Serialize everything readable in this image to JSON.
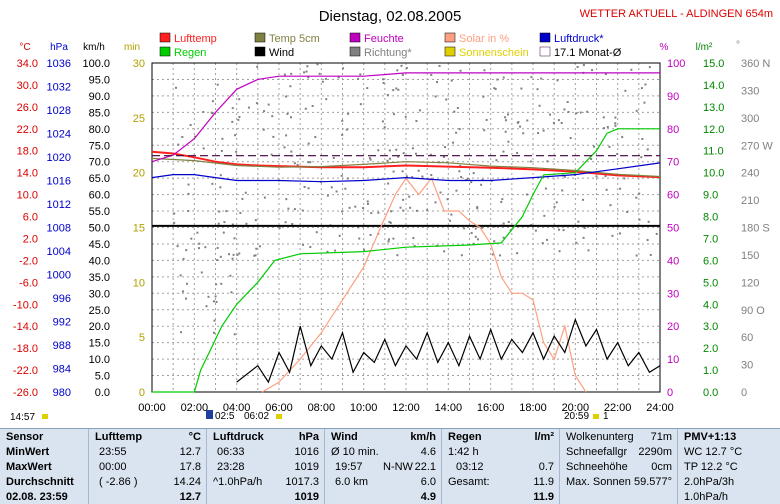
{
  "header": {
    "date_title": "Dienstag, 02.08.2005",
    "station": "WETTER AKTUELL - ALDINGEN 654m"
  },
  "axis_units": {
    "temp": "°C",
    "pressure": "hPa",
    "wind": "km/h",
    "sun_min": "min",
    "percent": "%",
    "rain": "l/m²",
    "direction": "°"
  },
  "legend": [
    {
      "name": "Lufttemp",
      "color": "#ff2020"
    },
    {
      "name": "Temp 5cm",
      "color": "#808040"
    },
    {
      "name": "Feuchte",
      "color": "#c000c0"
    },
    {
      "name": "Solar in %",
      "color": "#ffa080"
    },
    {
      "name": "Luftdruck*",
      "color": "#0000cc"
    },
    {
      "name": "Regen",
      "color": "#00cc00"
    },
    {
      "name": "Wind",
      "color": "#000000"
    },
    {
      "name": "Richtung*",
      "color": "#808080"
    },
    {
      "name": "Sonnenschein",
      "color": "#e0d000"
    },
    {
      "name": "17.1 Monat-Ø",
      "color": "#400040"
    }
  ],
  "chart_data": {
    "type": "line",
    "x_ticks": [
      "00:00",
      "02:00",
      "04:00",
      "06:00",
      "08:00",
      "10:00",
      "12:00",
      "14:00",
      "16:00",
      "18:00",
      "20:00",
      "22:00",
      "24:00"
    ],
    "xlim_hours": [
      0,
      24
    ],
    "axes": {
      "temp_c": {
        "ticks": [
          "34.0",
          "30.0",
          "26.0",
          "22.0",
          "18.0",
          "14.0",
          "10.0",
          "6.0",
          "2.0",
          "-2.0",
          "-6.0",
          "-10.0",
          "-14.0",
          "-18.0",
          "-22.0",
          "-26.0"
        ],
        "ylim": [
          -26,
          34
        ],
        "color": "#dd0000"
      },
      "pressure_hpa": {
        "ticks": [
          "1036",
          "1032",
          "1028",
          "1024",
          "1020",
          "1016",
          "1012",
          "1008",
          "1004",
          "1000",
          "996",
          "992",
          "988",
          "984",
          "980"
        ],
        "ylim": [
          980,
          1036
        ],
        "color": "#0000cc"
      },
      "wind_kmh": {
        "ticks": [
          "100.0",
          "95.0",
          "90.0",
          "85.0",
          "80.0",
          "75.0",
          "70.0",
          "65.0",
          "60.0",
          "55.0",
          "50.0",
          "45.0",
          "40.0",
          "35.0",
          "30.0",
          "25.0",
          "20.0",
          "15.0",
          "10.0",
          "5.0",
          "0.0"
        ],
        "ylim": [
          0,
          100
        ],
        "color": "#000000"
      },
      "sun_min": {
        "ticks": [
          "30",
          "25",
          "20",
          "15",
          "10",
          "5",
          "0"
        ],
        "ylim": [
          0,
          30
        ],
        "color": "#b0a000"
      },
      "percent": {
        "ticks": [
          "100",
          "90",
          "80",
          "70",
          "60",
          "50",
          "40",
          "30",
          "20",
          "10",
          "0"
        ],
        "ylim": [
          0,
          100
        ],
        "color": "#c000c0"
      },
      "rain_lm2": {
        "ticks": [
          "15.0",
          "14.0",
          "13.0",
          "12.0",
          "11.0",
          "10.0",
          "9.0",
          "8.0",
          "7.0",
          "6.0",
          "5.0",
          "4.0",
          "3.0",
          "2.0",
          "1.0",
          "0.0"
        ],
        "ylim": [
          0,
          15
        ],
        "color": "#008800"
      },
      "direction_deg": {
        "ticks": [
          "360 N",
          "330",
          "300",
          "270 W",
          "240",
          "210",
          "180 S",
          "150",
          "120",
          "90 O",
          "60",
          "30",
          "0"
        ],
        "ylim": [
          0,
          360
        ],
        "color": "#808080"
      }
    },
    "series": [
      {
        "name": "Lufttemp",
        "axis": "temp_c",
        "color": "#ff2020",
        "points": [
          [
            0,
            17.8
          ],
          [
            1,
            17.5
          ],
          [
            2,
            16.8
          ],
          [
            3,
            16.0
          ],
          [
            4,
            15.5
          ],
          [
            5,
            15.3
          ],
          [
            6,
            15.2
          ],
          [
            8,
            15.0
          ],
          [
            10,
            15.0
          ],
          [
            12,
            15.3
          ],
          [
            14,
            15.1
          ],
          [
            16,
            14.9
          ],
          [
            18,
            14.6
          ],
          [
            20,
            14.2
          ],
          [
            22,
            13.5
          ],
          [
            24,
            13.2
          ]
        ]
      },
      {
        "name": "Temp 5cm",
        "axis": "temp_c",
        "color": "#808040",
        "points": [
          [
            0,
            16.6
          ],
          [
            2,
            16.2
          ],
          [
            4,
            15.3
          ],
          [
            6,
            15.0
          ],
          [
            8,
            15.1
          ],
          [
            10,
            15.5
          ],
          [
            12,
            16.0
          ],
          [
            14,
            15.8
          ],
          [
            16,
            15.2
          ],
          [
            18,
            14.9
          ],
          [
            20,
            14.4
          ],
          [
            22,
            13.7
          ],
          [
            24,
            13.3
          ]
        ]
      },
      {
        "name": "Feuchte",
        "axis": "percent",
        "color": "#c000c0",
        "points": [
          [
            0,
            70
          ],
          [
            1,
            72
          ],
          [
            2,
            77
          ],
          [
            3,
            85
          ],
          [
            4,
            92
          ],
          [
            5,
            95
          ],
          [
            6,
            96
          ],
          [
            10,
            96
          ],
          [
            12,
            97
          ],
          [
            24,
            97
          ]
        ]
      },
      {
        "name": "Solar in %",
        "axis": "percent",
        "color": "#ffa080",
        "points": [
          [
            5.2,
            0
          ],
          [
            6,
            3
          ],
          [
            7,
            10
          ],
          [
            8,
            18
          ],
          [
            9,
            28
          ],
          [
            10,
            38
          ],
          [
            10.8,
            50
          ],
          [
            11.5,
            60
          ],
          [
            12,
            65
          ],
          [
            12.6,
            60
          ],
          [
            13.2,
            65
          ],
          [
            13.8,
            55
          ],
          [
            14.5,
            55
          ],
          [
            15,
            52
          ],
          [
            15.5,
            50
          ],
          [
            16,
            45
          ],
          [
            16.5,
            35
          ],
          [
            17,
            30
          ],
          [
            17.5,
            30
          ],
          [
            18,
            28
          ],
          [
            18.5,
            15
          ],
          [
            19,
            10
          ],
          [
            19.5,
            20
          ],
          [
            20,
            5
          ],
          [
            20.5,
            0
          ]
        ]
      },
      {
        "name": "Luftdruck*",
        "axis": "pressure_hpa",
        "color": "#0000cc",
        "points": [
          [
            0,
            1016.5
          ],
          [
            1,
            1017
          ],
          [
            2,
            1017
          ],
          [
            3,
            1016.5
          ],
          [
            4,
            1016
          ],
          [
            6,
            1016
          ],
          [
            8,
            1015.8
          ],
          [
            10,
            1016
          ],
          [
            12,
            1016.5
          ],
          [
            14,
            1016
          ],
          [
            16,
            1016
          ],
          [
            18,
            1016.5
          ],
          [
            20,
            1017
          ],
          [
            22,
            1018
          ],
          [
            24,
            1019
          ]
        ]
      },
      {
        "name": "Regen",
        "axis": "rain_lm2",
        "color": "#00cc00",
        "points": [
          [
            0,
            0
          ],
          [
            2,
            0
          ],
          [
            2.3,
            1
          ],
          [
            2.8,
            2
          ],
          [
            3.3,
            3
          ],
          [
            4,
            4
          ],
          [
            5,
            5
          ],
          [
            5.8,
            6
          ],
          [
            7,
            6.3
          ],
          [
            10,
            6.4
          ],
          [
            12,
            6.6
          ],
          [
            15,
            6.7
          ],
          [
            16.5,
            6.8
          ],
          [
            17.5,
            8
          ],
          [
            18,
            9
          ],
          [
            18.5,
            9.9
          ],
          [
            20,
            10
          ],
          [
            21,
            11
          ],
          [
            21.5,
            11.8
          ],
          [
            22,
            12
          ],
          [
            24,
            12
          ]
        ]
      },
      {
        "name": "Wind",
        "axis": "wind_kmh",
        "color": "#000000",
        "points": [
          [
            4,
            3
          ],
          [
            5,
            8
          ],
          [
            5.5,
            3
          ],
          [
            6,
            12
          ],
          [
            6.5,
            6
          ],
          [
            7,
            20
          ],
          [
            7.5,
            8
          ],
          [
            8,
            14
          ],
          [
            8.5,
            10
          ],
          [
            9,
            18
          ],
          [
            9.5,
            6
          ],
          [
            10,
            12
          ],
          [
            10.5,
            9
          ],
          [
            11,
            16
          ],
          [
            11.5,
            8
          ],
          [
            12,
            14
          ],
          [
            12.5,
            10
          ],
          [
            13,
            18
          ],
          [
            13.5,
            9
          ],
          [
            14,
            15
          ],
          [
            14.5,
            8
          ],
          [
            15,
            17
          ],
          [
            15.5,
            10
          ],
          [
            16,
            19
          ],
          [
            16.5,
            10
          ],
          [
            17,
            16
          ],
          [
            17.5,
            12
          ],
          [
            18,
            18
          ],
          [
            18.5,
            10
          ],
          [
            19,
            17
          ],
          [
            19.5,
            12
          ],
          [
            20,
            22
          ],
          [
            20.5,
            14
          ],
          [
            21,
            19
          ],
          [
            21.5,
            10
          ],
          [
            22,
            15
          ],
          [
            22.5,
            8
          ],
          [
            23,
            12
          ],
          [
            23.5,
            6
          ],
          [
            24,
            8
          ]
        ]
      },
      {
        "name": "17.1 Monat-Ø",
        "axis": "temp_c",
        "color": "#400040",
        "points": [
          [
            0,
            17.1
          ],
          [
            24,
            17.1
          ]
        ]
      }
    ],
    "reference_lines": [
      {
        "axis": "temp_c",
        "value": 4.3,
        "color": "#000000"
      }
    ],
    "below_axis": {
      "left_time": "14:57",
      "sunrise": "02:5",
      "sunrise2": "06:02",
      "sunset": "20:59",
      "sunset_count": "1"
    }
  },
  "summary": {
    "sensor": {
      "title": "Sensor",
      "rows": [
        "MinWert",
        "MaxWert",
        "Durchschnitt",
        "02.08. 23:59"
      ]
    },
    "lufttemp": {
      "title": "Lufttemp",
      "unit": "°C",
      "rows": [
        [
          "23:55",
          "12.7"
        ],
        [
          "00:00",
          "17.8"
        ],
        [
          "( -2.86 )",
          "14.24"
        ],
        [
          "",
          "12.7"
        ]
      ]
    },
    "luftdruck": {
      "title": "Luftdruck",
      "unit": "hPa",
      "rows": [
        [
          "06:33",
          "1016"
        ],
        [
          "23:28",
          "1019"
        ],
        [
          "^1.0hPa/h",
          "1017.3"
        ],
        [
          "",
          "1019"
        ]
      ]
    },
    "wind": {
      "title": "Wind",
      "unit": "km/h",
      "rows": [
        [
          "Ø 10 min.",
          "",
          "4.6"
        ],
        [
          "19:57",
          "N-NW",
          "22.1"
        ],
        [
          "6.0 km",
          "",
          "6.0"
        ],
        [
          "",
          "",
          "4.9"
        ]
      ]
    },
    "regen": {
      "title": "Regen",
      "unit": "l/m²",
      "rows": [
        [
          "1:42 h",
          ""
        ],
        [
          "03:12",
          "0.7"
        ],
        [
          "Gesamt:",
          "11.9"
        ],
        [
          "",
          "11.9"
        ]
      ]
    },
    "wolken": {
      "rows": [
        [
          "Wolkenunterg",
          "71m"
        ],
        [
          "Schneefallgr",
          "2290m"
        ],
        [
          "Schneehöhe",
          "0cm"
        ],
        [
          "Max. Sonnen",
          "59.577°"
        ],
        [
          "",
          ""
        ]
      ]
    },
    "pmv": {
      "title": "PMV+1:13",
      "rows": [
        "WC 12.7 °C",
        "TP 12.2 °C",
        "2.0hPa/3h",
        "1.0hPa/h"
      ]
    }
  }
}
